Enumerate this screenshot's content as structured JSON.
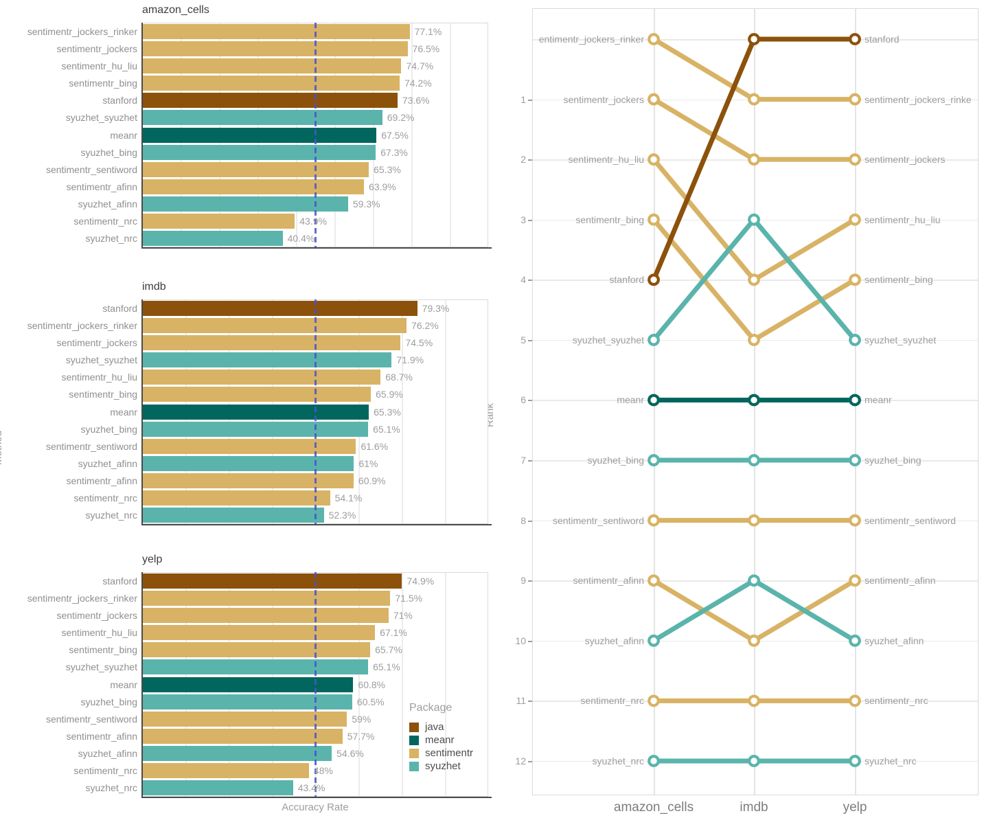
{
  "palette": {
    "java": "#8C510A",
    "meanr": "#01665E",
    "sentimentr": "#D8B365",
    "syuzhet": "#5AB4AC"
  },
  "reference_line": {
    "color": "#4853CB",
    "value_pct": 50
  },
  "labels": {
    "method_axis": "Method",
    "accuracy_axis": "Accuracy Rate",
    "rank_axis": "Rank"
  },
  "legend": {
    "title": "Package",
    "items": [
      {
        "label": "java",
        "color": "#8C510A"
      },
      {
        "label": "meanr",
        "color": "#01665E"
      },
      {
        "label": "sentimentr",
        "color": "#D8B365"
      },
      {
        "label": "syuzhet",
        "color": "#5AB4AC"
      }
    ]
  },
  "chart_data": [
    {
      "type": "bar",
      "orientation": "horizontal",
      "title": "amazon_cells",
      "ylabel": "Method",
      "xlabel": "Accuracy Rate",
      "xlim": [
        0,
        100
      ],
      "reference_line_pct": 50,
      "categories": [
        "sentimentr_jockers_rinker",
        "sentimentr_jockers",
        "sentimentr_hu_liu",
        "sentimentr_bing",
        "stanford",
        "syuzhet_syuzhet",
        "meanr",
        "syuzhet_bing",
        "sentimentr_sentiword",
        "sentimentr_afinn",
        "syuzhet_afinn",
        "sentimentr_nrc",
        "syuzhet_nrc"
      ],
      "values": [
        77.1,
        76.5,
        74.7,
        74.2,
        73.6,
        69.2,
        67.5,
        67.3,
        65.3,
        63.9,
        59.3,
        43.9,
        40.4
      ],
      "value_labels": [
        "77.1%",
        "76.5%",
        "74.7%",
        "74.2%",
        "73.6%",
        "69.2%",
        "67.5%",
        "67.3%",
        "65.3%",
        "63.9%",
        "59.3%",
        "43.9%",
        "40.4%"
      ],
      "packages": [
        "sentimentr",
        "sentimentr",
        "sentimentr",
        "sentimentr",
        "java",
        "syuzhet",
        "meanr",
        "syuzhet",
        "sentimentr",
        "sentimentr",
        "syuzhet",
        "sentimentr",
        "syuzhet"
      ],
      "n_gridlines": 9
    },
    {
      "type": "bar",
      "orientation": "horizontal",
      "title": "imdb",
      "ylabel": "Method",
      "xlabel": "Accuracy Rate",
      "xlim": [
        0,
        100
      ],
      "reference_line_pct": 50,
      "categories": [
        "stanford",
        "sentimentr_jockers_rinker",
        "sentimentr_jockers",
        "syuzhet_syuzhet",
        "sentimentr_hu_liu",
        "sentimentr_bing",
        "meanr",
        "syuzhet_bing",
        "sentimentr_sentiword",
        "syuzhet_afinn",
        "sentimentr_afinn",
        "sentimentr_nrc",
        "syuzhet_nrc"
      ],
      "values": [
        79.3,
        76.2,
        74.5,
        71.9,
        68.7,
        65.9,
        65.3,
        65.1,
        61.6,
        61,
        60.9,
        54.1,
        52.3
      ],
      "value_labels": [
        "79.3%",
        "76.2%",
        "74.5%",
        "71.9%",
        "68.7%",
        "65.9%",
        "65.3%",
        "65.1%",
        "61.6%",
        "61%",
        "60.9%",
        "54.1%",
        "52.3%"
      ],
      "packages": [
        "java",
        "sentimentr",
        "sentimentr",
        "syuzhet",
        "sentimentr",
        "sentimentr",
        "meanr",
        "syuzhet",
        "sentimentr",
        "syuzhet",
        "sentimentr",
        "sentimentr",
        "syuzhet"
      ],
      "n_gridlines": 8
    },
    {
      "type": "bar",
      "orientation": "horizontal",
      "title": "yelp",
      "ylabel": "Method",
      "xlabel": "Accuracy Rate",
      "xlim": [
        0,
        100
      ],
      "reference_line_pct": 50,
      "categories": [
        "stanford",
        "sentimentr_jockers_rinker",
        "sentimentr_jockers",
        "sentimentr_hu_liu",
        "sentimentr_bing",
        "syuzhet_syuzhet",
        "meanr",
        "syuzhet_bing",
        "sentimentr_sentiword",
        "sentimentr_afinn",
        "syuzhet_afinn",
        "sentimentr_nrc",
        "syuzhet_nrc"
      ],
      "values": [
        74.9,
        71.5,
        71,
        67.1,
        65.7,
        65.1,
        60.8,
        60.5,
        59,
        57.7,
        54.6,
        48,
        43.4
      ],
      "value_labels": [
        "74.9%",
        "71.5%",
        "71%",
        "67.1%",
        "65.7%",
        "65.1%",
        "60.8%",
        "60.5%",
        "59%",
        "57.7%",
        "54.6%",
        "48%",
        "43.4%"
      ],
      "packages": [
        "java",
        "sentimentr",
        "sentimentr",
        "sentimentr",
        "sentimentr",
        "syuzhet",
        "meanr",
        "syuzhet",
        "sentimentr",
        "sentimentr",
        "syuzhet",
        "sentimentr",
        "syuzhet"
      ],
      "n_gridlines": 8
    },
    {
      "type": "line",
      "subtype": "bump",
      "ylabel": "Rank",
      "x": [
        "amazon_cells",
        "imdb",
        "yelp"
      ],
      "y_tick_labels": [
        "1",
        "2",
        "3",
        "4",
        "5",
        "6",
        "7",
        "8",
        "9",
        "10",
        "11",
        "12"
      ],
      "rank_rows": 13,
      "legend_position": "none",
      "grid": true,
      "series": [
        {
          "name": "sentimentr_jockers_rinker",
          "package": "sentimentr",
          "ranks": [
            0,
            1,
            1
          ],
          "left_label": "entimentr_jockers_rinker",
          "right_label": "sentimentr_jockers_rinke"
        },
        {
          "name": "sentimentr_jockers",
          "package": "sentimentr",
          "ranks": [
            1,
            2,
            2
          ],
          "left_label": "sentimentr_jockers",
          "right_label": "sentimentr_jockers"
        },
        {
          "name": "sentimentr_hu_liu",
          "package": "sentimentr",
          "ranks": [
            2,
            4,
            3
          ],
          "left_label": "sentimentr_hu_liu",
          "right_label": "sentimentr_hu_liu"
        },
        {
          "name": "sentimentr_bing",
          "package": "sentimentr",
          "ranks": [
            3,
            5,
            4
          ],
          "left_label": "sentimentr_bing",
          "right_label": "sentimentr_bing"
        },
        {
          "name": "stanford",
          "package": "java",
          "ranks": [
            4,
            0,
            0
          ],
          "left_label": "stanford",
          "right_label": "stanford"
        },
        {
          "name": "syuzhet_syuzhet",
          "package": "syuzhet",
          "ranks": [
            5,
            3,
            5
          ],
          "left_label": "syuzhet_syuzhet",
          "right_label": "syuzhet_syuzhet"
        },
        {
          "name": "meanr",
          "package": "meanr",
          "ranks": [
            6,
            6,
            6
          ],
          "left_label": "meanr",
          "right_label": "meanr"
        },
        {
          "name": "syuzhet_bing",
          "package": "syuzhet",
          "ranks": [
            7,
            7,
            7
          ],
          "left_label": "syuzhet_bing",
          "right_label": "syuzhet_bing"
        },
        {
          "name": "sentimentr_sentiword",
          "package": "sentimentr",
          "ranks": [
            8,
            8,
            8
          ],
          "left_label": "sentimentr_sentiword",
          "right_label": "sentimentr_sentiword"
        },
        {
          "name": "sentimentr_afinn",
          "package": "sentimentr",
          "ranks": [
            9,
            10,
            9
          ],
          "left_label": "sentimentr_afinn",
          "right_label": "sentimentr_afinn"
        },
        {
          "name": "syuzhet_afinn",
          "package": "syuzhet",
          "ranks": [
            10,
            9,
            10
          ],
          "left_label": "syuzhet_afinn",
          "right_label": "syuzhet_afinn"
        },
        {
          "name": "sentimentr_nrc",
          "package": "sentimentr",
          "ranks": [
            11,
            11,
            11
          ],
          "left_label": "sentimentr_nrc",
          "right_label": "sentimentr_nrc"
        },
        {
          "name": "syuzhet_nrc",
          "package": "syuzhet",
          "ranks": [
            12,
            12,
            12
          ],
          "left_label": "syuzhet_nrc",
          "right_label": "syuzhet_nrc"
        }
      ]
    }
  ]
}
